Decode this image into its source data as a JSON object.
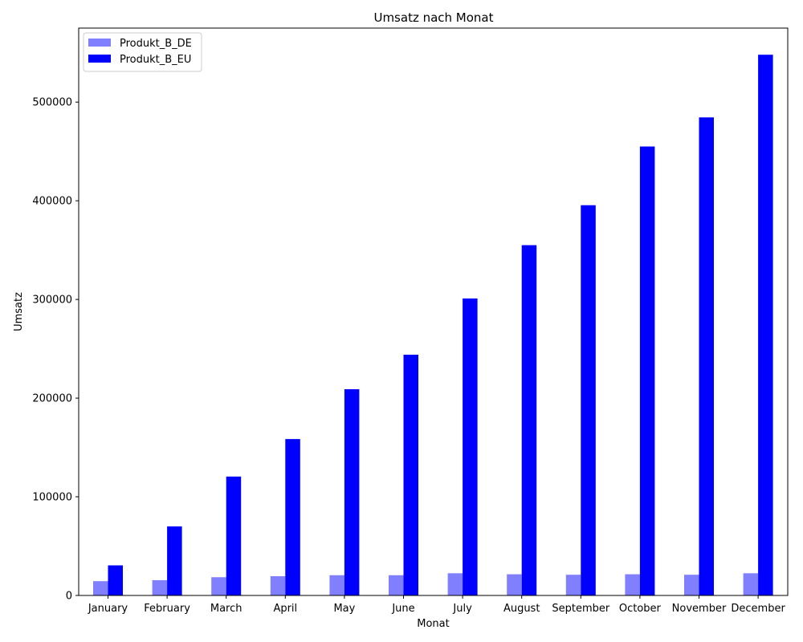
{
  "chart_data": {
    "type": "bar",
    "title": "Umsatz nach Monat",
    "xlabel": "Monat",
    "ylabel": "Umsatz",
    "ylim": [
      0,
      575000
    ],
    "yticks": [
      0,
      100000,
      200000,
      300000,
      400000,
      500000
    ],
    "ytick_labels": [
      "0",
      "100000",
      "200000",
      "300000",
      "400000",
      "500000"
    ],
    "categories": [
      "January",
      "February",
      "March",
      "April",
      "May",
      "June",
      "July",
      "August",
      "September",
      "October",
      "November",
      "December"
    ],
    "series": [
      {
        "name": "Produkt_B_DE",
        "color": "#8080ff",
        "values": [
          14500,
          15500,
          18500,
          19500,
          20500,
          20500,
          22500,
          21500,
          21000,
          21500,
          21000,
          22500
        ]
      },
      {
        "name": "Produkt_B_EU",
        "color": "#0000ff",
        "values": [
          30500,
          70000,
          120500,
          158500,
          209000,
          244000,
          301000,
          355000,
          395500,
          455000,
          484500,
          548000
        ]
      }
    ],
    "legend_position": "upper-left",
    "grid": false
  }
}
